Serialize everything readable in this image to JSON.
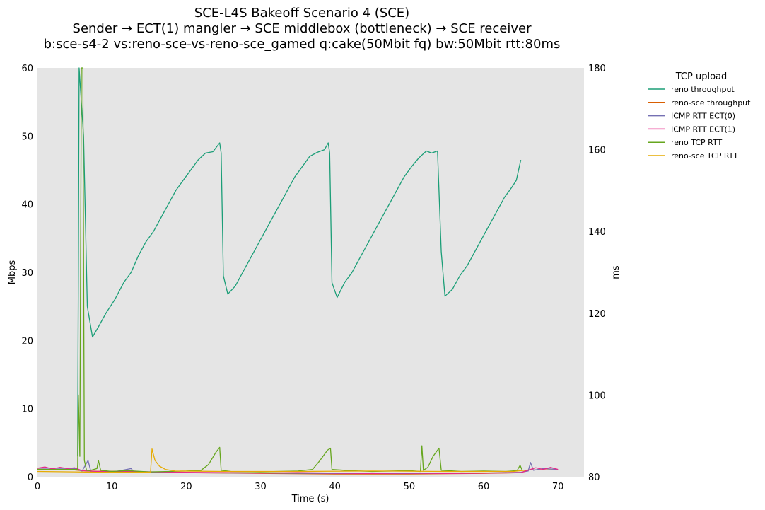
{
  "chart_data": {
    "type": "line",
    "title": [
      "SCE-L4S Bakeoff Scenario 4 (SCE)",
      "Sender → ECT(1) mangler → SCE middlebox (bottleneck) → SCE receiver",
      "b:sce-s4-2 vs:reno-sce-vs-reno-sce_gamed q:cake(50Mbit fq) bw:50Mbit rtt:80ms"
    ],
    "xlabel": "Time (s)",
    "ylabel_left": "Mbps",
    "ylabel_right": "ms",
    "xlim": [
      0,
      73.5
    ],
    "ylim_left": [
      0,
      60
    ],
    "ylim_right": [
      80,
      180
    ],
    "xticks": [
      0,
      10,
      20,
      30,
      40,
      50,
      60,
      70
    ],
    "yticks_left": [
      0,
      10,
      20,
      30,
      40,
      50,
      60
    ],
    "yticks_right": [
      80,
      100,
      120,
      140,
      160,
      180
    ],
    "grid": false,
    "legend": {
      "title": "TCP upload",
      "position": "outside-right"
    },
    "series": [
      {
        "name": "reno throughput",
        "axis": "left",
        "color": "#1b9e77",
        "points": [
          [
            5.4,
            3
          ],
          [
            5.6,
            62
          ],
          [
            6.2,
            50
          ],
          [
            6.7,
            25
          ],
          [
            7.4,
            20.5
          ],
          [
            8.2,
            22
          ],
          [
            9.2,
            24
          ],
          [
            10.4,
            26
          ],
          [
            11.6,
            28.5
          ],
          [
            12.6,
            30
          ],
          [
            13.6,
            32.5
          ],
          [
            14.6,
            34.5
          ],
          [
            15.6,
            36
          ],
          [
            16.6,
            38
          ],
          [
            17.6,
            40
          ],
          [
            18.6,
            42
          ],
          [
            19.6,
            43.5
          ],
          [
            20.6,
            45
          ],
          [
            21.6,
            46.5
          ],
          [
            22.6,
            47.5
          ],
          [
            23.6,
            47.7
          ],
          [
            24.5,
            49
          ],
          [
            24.7,
            47.5
          ],
          [
            25,
            29.5
          ],
          [
            25.6,
            26.8
          ],
          [
            26.6,
            28
          ],
          [
            27.6,
            30
          ],
          [
            28.6,
            32
          ],
          [
            29.6,
            34
          ],
          [
            30.6,
            36
          ],
          [
            31.6,
            38
          ],
          [
            32.6,
            40
          ],
          [
            33.6,
            42
          ],
          [
            34.6,
            44
          ],
          [
            35.6,
            45.5
          ],
          [
            36.6,
            47
          ],
          [
            37.6,
            47.6
          ],
          [
            38.6,
            48
          ],
          [
            39.1,
            49
          ],
          [
            39.3,
            47.5
          ],
          [
            39.6,
            28.5
          ],
          [
            40.3,
            26.3
          ],
          [
            41.3,
            28.5
          ],
          [
            42.3,
            30
          ],
          [
            43.3,
            32
          ],
          [
            44.3,
            34
          ],
          [
            45.3,
            36
          ],
          [
            46.3,
            38
          ],
          [
            47.3,
            40
          ],
          [
            48.3,
            42
          ],
          [
            49.3,
            44
          ],
          [
            50.3,
            45.5
          ],
          [
            51.3,
            46.8
          ],
          [
            52.3,
            47.8
          ],
          [
            53,
            47.5
          ],
          [
            53.8,
            47.8
          ],
          [
            54.3,
            33
          ],
          [
            54.8,
            26.5
          ],
          [
            55.8,
            27.5
          ],
          [
            56.8,
            29.5
          ],
          [
            57.8,
            31
          ],
          [
            58.8,
            33
          ],
          [
            59.8,
            35
          ],
          [
            60.8,
            37
          ],
          [
            61.8,
            39
          ],
          [
            62.8,
            41
          ],
          [
            63.8,
            42.5
          ],
          [
            64.4,
            43.5
          ],
          [
            65,
            46.5
          ]
        ]
      },
      {
        "name": "reno-sce throughput",
        "axis": "left",
        "color": "#d95f02",
        "points": [
          [
            0,
            1.1
          ],
          [
            5,
            1
          ],
          [
            6,
            0.9
          ],
          [
            8,
            0.8
          ],
          [
            12,
            0.8
          ],
          [
            15,
            0.7
          ],
          [
            20,
            0.6
          ],
          [
            30,
            0.5
          ],
          [
            40,
            0.4
          ],
          [
            50,
            0.4
          ],
          [
            60,
            0.5
          ],
          [
            65,
            0.6
          ],
          [
            66,
            1
          ],
          [
            70,
            1
          ]
        ]
      },
      {
        "name": "ICMP RTT ECT(0)",
        "axis": "right",
        "color": "#7570b3",
        "points": [
          [
            0,
            82.1
          ],
          [
            5,
            82.0
          ],
          [
            6,
            81.4
          ],
          [
            6.8,
            84
          ],
          [
            7.2,
            81.2
          ],
          [
            10,
            81.1
          ],
          [
            12.6,
            82
          ],
          [
            13,
            81.1
          ],
          [
            20,
            81.0
          ],
          [
            30,
            80.9
          ],
          [
            40,
            80.8
          ],
          [
            50,
            80.8
          ],
          [
            60,
            80.9
          ],
          [
            65,
            81.1
          ],
          [
            66,
            81.4
          ],
          [
            66.3,
            83.5
          ],
          [
            66.7,
            81.6
          ],
          [
            68,
            82
          ],
          [
            70,
            81.8
          ]
        ]
      },
      {
        "name": "ICMP RTT ECT(1)",
        "axis": "right",
        "color": "#e7298a",
        "points": [
          [
            0,
            82.1
          ],
          [
            1,
            82.4
          ],
          [
            2,
            81.9
          ],
          [
            3,
            82.3
          ],
          [
            4,
            82
          ],
          [
            5,
            82.2
          ],
          [
            6,
            81.5
          ],
          [
            8,
            81.3
          ],
          [
            12,
            81.3
          ],
          [
            16,
            81.2
          ],
          [
            20,
            81.1
          ],
          [
            25,
            81.0
          ],
          [
            30,
            80.9
          ],
          [
            35,
            81.0
          ],
          [
            40,
            80.9
          ],
          [
            45,
            80.8
          ],
          [
            50,
            80.9
          ],
          [
            55,
            80.8
          ],
          [
            60,
            80.9
          ],
          [
            65,
            81.0
          ],
          [
            66,
            81.6
          ],
          [
            67,
            82.2
          ],
          [
            68,
            81.8
          ],
          [
            69,
            82.3
          ],
          [
            70,
            81.8
          ]
        ]
      },
      {
        "name": "reno TCP RTT",
        "axis": "right",
        "color": "#66a61e",
        "points": [
          [
            0,
            81.8
          ],
          [
            5.4,
            81.8
          ],
          [
            5.5,
            100
          ],
          [
            5.7,
            85
          ],
          [
            5.9,
            181
          ],
          [
            6.1,
            183
          ],
          [
            6.3,
            84
          ],
          [
            6.6,
            81.6
          ],
          [
            7,
            81.5
          ],
          [
            8,
            82
          ],
          [
            8.2,
            84
          ],
          [
            8.5,
            81.6
          ],
          [
            10,
            81.3
          ],
          [
            12,
            81.5
          ],
          [
            15,
            81.2
          ],
          [
            20,
            81.4
          ],
          [
            22,
            81.6
          ],
          [
            23,
            83
          ],
          [
            24,
            86
          ],
          [
            24.5,
            87.2
          ],
          [
            24.7,
            81.6
          ],
          [
            26,
            81.3
          ],
          [
            30,
            81.2
          ],
          [
            35,
            81.4
          ],
          [
            37,
            81.8
          ],
          [
            38,
            84
          ],
          [
            39,
            86.5
          ],
          [
            39.4,
            87
          ],
          [
            39.6,
            81.8
          ],
          [
            42,
            81.5
          ],
          [
            45,
            81.3
          ],
          [
            50,
            81.5
          ],
          [
            51.5,
            81.3
          ],
          [
            51.7,
            87.6
          ],
          [
            51.9,
            81.6
          ],
          [
            52.5,
            82.3
          ],
          [
            53.2,
            85
          ],
          [
            54,
            87
          ],
          [
            54.3,
            81.6
          ],
          [
            57,
            81.3
          ],
          [
            60,
            81.4
          ],
          [
            63,
            81.3
          ],
          [
            64.5,
            81.5
          ],
          [
            64.9,
            82.8
          ],
          [
            65.2,
            81.5
          ]
        ]
      },
      {
        "name": "reno-sce TCP RTT",
        "axis": "right",
        "color": "#e6ab02",
        "points": [
          [
            0,
            81.3
          ],
          [
            5,
            81.2
          ],
          [
            8,
            81.1
          ],
          [
            15.2,
            81.1
          ],
          [
            15.4,
            86.8
          ],
          [
            15.8,
            84
          ],
          [
            16.4,
            82.6
          ],
          [
            17.2,
            81.8
          ],
          [
            18.5,
            81.4
          ],
          [
            25,
            81.3
          ],
          [
            35,
            81.3
          ],
          [
            45,
            81.4
          ],
          [
            55,
            81.3
          ],
          [
            64,
            81.3
          ],
          [
            65.5,
            81.6
          ]
        ]
      }
    ]
  }
}
